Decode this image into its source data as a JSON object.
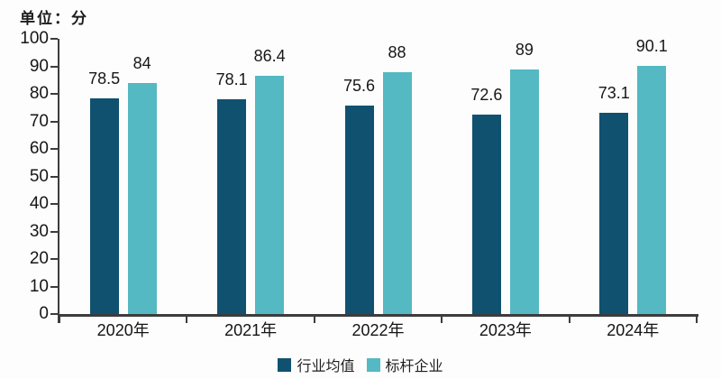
{
  "chart_data": {
    "type": "bar",
    "unit_label": "单位：分",
    "categories": [
      "2020年",
      "2021年",
      "2022年",
      "2023年",
      "2024年"
    ],
    "series": [
      {
        "name": "行业均值",
        "color": "#10516f",
        "values": [
          78.5,
          78.1,
          75.6,
          72.6,
          73.1
        ]
      },
      {
        "name": "标杆企业",
        "color": "#54b9c3",
        "values": [
          84,
          86.4,
          88,
          89,
          90.1
        ]
      }
    ],
    "ylim": [
      0,
      100
    ],
    "y_ticks": [
      0,
      10,
      20,
      30,
      40,
      50,
      60,
      70,
      80,
      90,
      100
    ],
    "grid": false,
    "legend_position": "bottom",
    "axis_color": "#3c3c3c",
    "text_color": "#1b1b1b",
    "background": "#fdfdfd"
  }
}
